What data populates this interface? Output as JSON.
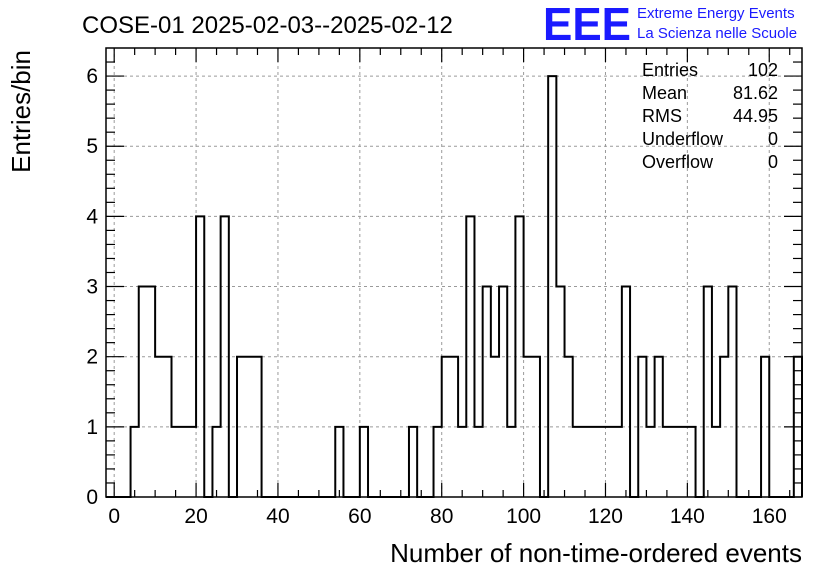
{
  "chart_data": {
    "type": "histogram",
    "title": "COSE-01 2025-02-03--2025-02-12",
    "xlabel": "Number of non-time-ordered events",
    "ylabel": "Entries/bin",
    "xlim": [
      -2,
      168
    ],
    "ylim": [
      0,
      6.4
    ],
    "bin_width": 2,
    "x_ticks": [
      0,
      20,
      40,
      60,
      80,
      100,
      120,
      140,
      160
    ],
    "y_ticks": [
      0,
      1,
      2,
      3,
      4,
      5,
      6
    ],
    "grid": true,
    "bins": [
      {
        "x": -2,
        "value": 0
      },
      {
        "x": 0,
        "value": 0
      },
      {
        "x": 2,
        "value": 0
      },
      {
        "x": 4,
        "value": 1
      },
      {
        "x": 6,
        "value": 3
      },
      {
        "x": 8,
        "value": 3
      },
      {
        "x": 10,
        "value": 2
      },
      {
        "x": 12,
        "value": 2
      },
      {
        "x": 14,
        "value": 1
      },
      {
        "x": 16,
        "value": 1
      },
      {
        "x": 18,
        "value": 1
      },
      {
        "x": 20,
        "value": 4
      },
      {
        "x": 22,
        "value": 0
      },
      {
        "x": 24,
        "value": 1
      },
      {
        "x": 26,
        "value": 4
      },
      {
        "x": 28,
        "value": 0
      },
      {
        "x": 30,
        "value": 2
      },
      {
        "x": 32,
        "value": 2
      },
      {
        "x": 34,
        "value": 2
      },
      {
        "x": 36,
        "value": 0
      },
      {
        "x": 38,
        "value": 0
      },
      {
        "x": 40,
        "value": 0
      },
      {
        "x": 42,
        "value": 0
      },
      {
        "x": 44,
        "value": 0
      },
      {
        "x": 46,
        "value": 0
      },
      {
        "x": 48,
        "value": 0
      },
      {
        "x": 50,
        "value": 0
      },
      {
        "x": 52,
        "value": 0
      },
      {
        "x": 54,
        "value": 1
      },
      {
        "x": 56,
        "value": 0
      },
      {
        "x": 58,
        "value": 0
      },
      {
        "x": 60,
        "value": 1
      },
      {
        "x": 62,
        "value": 0
      },
      {
        "x": 64,
        "value": 0
      },
      {
        "x": 66,
        "value": 0
      },
      {
        "x": 68,
        "value": 0
      },
      {
        "x": 70,
        "value": 0
      },
      {
        "x": 72,
        "value": 1
      },
      {
        "x": 74,
        "value": 0
      },
      {
        "x": 76,
        "value": 0
      },
      {
        "x": 78,
        "value": 1
      },
      {
        "x": 80,
        "value": 2
      },
      {
        "x": 82,
        "value": 2
      },
      {
        "x": 84,
        "value": 1
      },
      {
        "x": 86,
        "value": 4
      },
      {
        "x": 88,
        "value": 1
      },
      {
        "x": 90,
        "value": 3
      },
      {
        "x": 92,
        "value": 2
      },
      {
        "x": 94,
        "value": 3
      },
      {
        "x": 96,
        "value": 1
      },
      {
        "x": 98,
        "value": 4
      },
      {
        "x": 100,
        "value": 2
      },
      {
        "x": 102,
        "value": 2
      },
      {
        "x": 104,
        "value": 0
      },
      {
        "x": 106,
        "value": 6
      },
      {
        "x": 108,
        "value": 3
      },
      {
        "x": 110,
        "value": 2
      },
      {
        "x": 112,
        "value": 1
      },
      {
        "x": 114,
        "value": 1
      },
      {
        "x": 116,
        "value": 1
      },
      {
        "x": 118,
        "value": 1
      },
      {
        "x": 120,
        "value": 1
      },
      {
        "x": 122,
        "value": 1
      },
      {
        "x": 124,
        "value": 3
      },
      {
        "x": 126,
        "value": 0
      },
      {
        "x": 128,
        "value": 2
      },
      {
        "x": 130,
        "value": 1
      },
      {
        "x": 132,
        "value": 2
      },
      {
        "x": 134,
        "value": 1
      },
      {
        "x": 136,
        "value": 1
      },
      {
        "x": 138,
        "value": 1
      },
      {
        "x": 140,
        "value": 1
      },
      {
        "x": 142,
        "value": 0
      },
      {
        "x": 144,
        "value": 3
      },
      {
        "x": 146,
        "value": 1
      },
      {
        "x": 148,
        "value": 2
      },
      {
        "x": 150,
        "value": 3
      },
      {
        "x": 152,
        "value": 0
      },
      {
        "x": 154,
        "value": 0
      },
      {
        "x": 156,
        "value": 0
      },
      {
        "x": 158,
        "value": 2
      },
      {
        "x": 160,
        "value": 0
      },
      {
        "x": 162,
        "value": 0
      },
      {
        "x": 164,
        "value": 0
      },
      {
        "x": 166,
        "value": 2
      }
    ],
    "stats": [
      {
        "label": "Entries",
        "value": "102"
      },
      {
        "label": "Mean",
        "value": "81.62"
      },
      {
        "label": "RMS",
        "value": "44.95"
      },
      {
        "label": "Underflow",
        "value": "0"
      },
      {
        "label": "Overflow",
        "value": "0"
      }
    ],
    "logo": {
      "mark": "EEE",
      "line1": "Extreme Energy Events",
      "line2": "La Scienza nelle Scuole",
      "color": "#1a1aff"
    }
  }
}
